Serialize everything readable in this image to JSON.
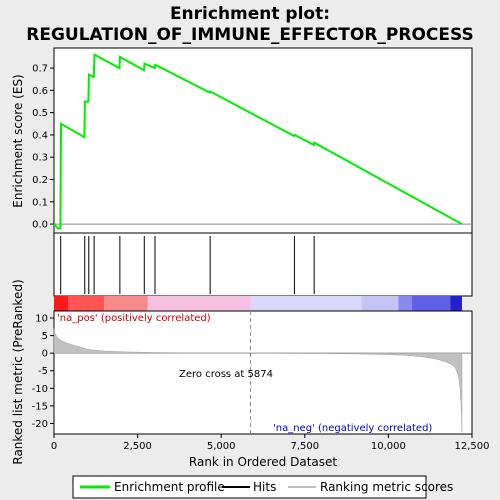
{
  "chart_data": {
    "type": "line",
    "title_line1": "Enrichment plot:",
    "title_line2": "REGULATION_OF_IMMUNE_EFFECTOR_PROCESS",
    "top_panel": {
      "ylabel": "Enrichment score (ES)",
      "ylim": [
        -0.04,
        0.79
      ],
      "yticks": [
        0.0,
        0.1,
        0.2,
        0.3,
        0.4,
        0.5,
        0.6,
        0.7
      ],
      "series": [
        {
          "name": "Enrichment profile",
          "color": "#00ee00",
          "x": [
            0,
            120,
            190,
            210,
            910,
            925,
            1030,
            1045,
            1190,
            1210,
            1960,
            1975,
            2690,
            2705,
            3010,
            3030,
            4660,
            4675,
            7180,
            7195,
            7770,
            7785,
            12200
          ],
          "y": [
            0.0,
            -0.02,
            -0.02,
            0.45,
            0.39,
            0.55,
            0.55,
            0.67,
            0.66,
            0.76,
            0.7,
            0.75,
            0.69,
            0.72,
            0.7,
            0.715,
            0.59,
            0.595,
            0.395,
            0.4,
            0.355,
            0.365,
            0.0
          ]
        }
      ]
    },
    "hits_panel": {
      "hit_positions": [
        200,
        920,
        1040,
        1200,
        1970,
        2700,
        3020,
        4670,
        7190,
        7780
      ]
    },
    "bottom_panel": {
      "ylabel": "Ranked list metric (PreRanked)",
      "ylim": [
        -23,
        12
      ],
      "yticks": [
        10,
        5,
        0,
        -5,
        -10,
        -15,
        -20
      ],
      "metric_points_x": [
        0,
        30,
        80,
        150,
        300,
        500,
        800,
        1000,
        1500,
        2000,
        3000,
        4000,
        5000,
        5874,
        7000,
        8000,
        9000,
        10000,
        10500,
        11000,
        11400,
        11700,
        11900,
        12000,
        12080,
        12120,
        12150,
        12170,
        12185,
        12200
      ],
      "metric_points_y": [
        7.0,
        5.8,
        4.8,
        4.0,
        3.2,
        2.5,
        1.7,
        1.1,
        0.6,
        0.4,
        0.2,
        0.1,
        0.03,
        0.0,
        -0.05,
        -0.1,
        -0.2,
        -0.4,
        -0.6,
        -1.0,
        -1.6,
        -2.4,
        -3.3,
        -4.2,
        -6.0,
        -8.0,
        -11.0,
        -14.0,
        -18.0,
        -22.5
      ]
    },
    "xaxis": {
      "label": "Rank in Ordered Dataset",
      "xlim": [
        0,
        12500
      ],
      "ticks": [
        0,
        2500,
        5000,
        7500,
        10000,
        12500
      ],
      "tick_labels": [
        "0",
        "2,500",
        "5,000",
        "7,500",
        "10,000",
        "12,500"
      ]
    },
    "annotations": {
      "pos_label": "'na_pos' (positively correlated)",
      "neg_label": "'na_neg' (negatively correlated)",
      "zero_cross_text": "Zero cross at 5874",
      "zero_cross_rank": 5874,
      "pos_color": "#cc0000",
      "neg_color": "#0000cc"
    },
    "color_bar": {
      "segments": [
        {
          "from": 0,
          "to": 430,
          "color": "#ff1a1a"
        },
        {
          "from": 430,
          "to": 1500,
          "color": "#ff5555"
        },
        {
          "from": 1500,
          "to": 2800,
          "color": "#f88a8a"
        },
        {
          "from": 2800,
          "to": 5874,
          "color": "#f8c0e0"
        },
        {
          "from": 5874,
          "to": 9200,
          "color": "#d8d8f8"
        },
        {
          "from": 9200,
          "to": 10300,
          "color": "#c4c4f4"
        },
        {
          "from": 10300,
          "to": 10700,
          "color": "#8888ee"
        },
        {
          "from": 10700,
          "to": 11850,
          "color": "#6060e6"
        },
        {
          "from": 11850,
          "to": 12200,
          "color": "#2020cc"
        }
      ]
    },
    "legend": {
      "items": [
        {
          "label": "Enrichment profile",
          "color": "#00ee00"
        },
        {
          "label": "Hits",
          "color": "#000000"
        },
        {
          "label": "Ranking metric scores",
          "color": "#c0c0c0"
        }
      ]
    }
  }
}
